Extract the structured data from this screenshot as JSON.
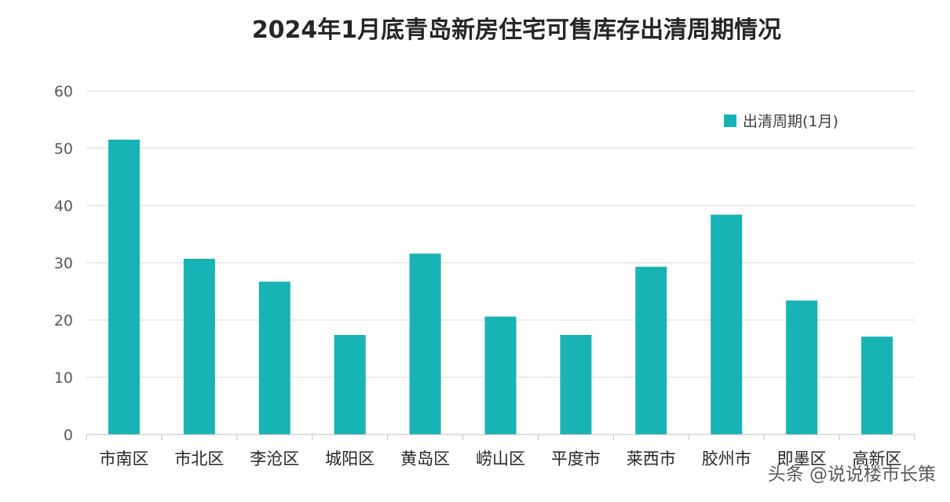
{
  "chart_data": {
    "type": "bar",
    "title": "2024年1月底青岛新房住宅可售库存出清周期情况",
    "categories": [
      "市南区",
      "市北区",
      "李沧区",
      "城阳区",
      "黄岛区",
      "崂山区",
      "平度市",
      "莱西市",
      "胶州市",
      "即墨区",
      "高新区"
    ],
    "series": [
      {
        "name": "出清周期(1月)",
        "values": [
          51.5,
          30.7,
          26.7,
          17.4,
          31.6,
          20.6,
          17.4,
          29.3,
          38.4,
          23.4,
          17.1
        ]
      }
    ],
    "ylim": [
      0,
      60
    ],
    "yticks": [
      0,
      10,
      20,
      30,
      40,
      50,
      60
    ],
    "grid": true,
    "legend_position": "top-right",
    "bar_color": "#17b3b5"
  },
  "watermark": {
    "text": "头条 @说说楼市长策"
  }
}
